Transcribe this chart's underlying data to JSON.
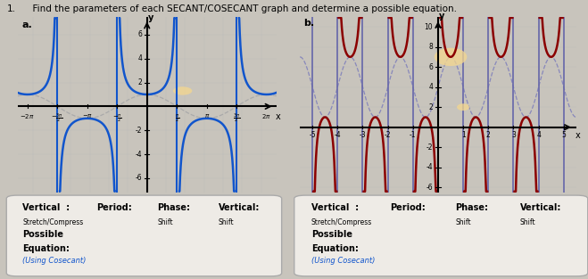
{
  "title_num": "1.",
  "title_text": "  Find the parameters of each SECANT/COSECANT graph and determine a possible equation.",
  "bg_color": "#c8c4bc",
  "graph_bg": "#dedad2",
  "label_a": "a.",
  "label_b": "b.",
  "graph_a": {
    "xlim": [
      -6.8,
      6.8
    ],
    "ylim": [
      -7.2,
      7.5
    ],
    "curve_color": "#1155cc",
    "asymptote_color": "#1155cc",
    "dashed_color": "#aaaaaa",
    "highlight_color": "#f5d78e",
    "amplitude": 1.0,
    "period_factor": 1.0
  },
  "graph_b": {
    "xlim": [
      -5.5,
      5.5
    ],
    "ylim": [
      -6.5,
      11.0
    ],
    "curve_color": "#8b0000",
    "asymptote_color": "#6666aa",
    "dashed_color": "#8888bb",
    "highlight_color": "#f5d78e",
    "amplitude": 3.0,
    "vert_shift": 4.0,
    "period_factor": 1.0
  },
  "box_bg": "#dedad2",
  "box_edge": "#aaaaaa",
  "label1_bold": "Vertical  :",
  "label1_small": "Stretch/Compress",
  "label2": "Period:",
  "label3_bold": "Phase:",
  "label3_small": "Shift",
  "label4_bold": "Vertical:",
  "label4_small": "Shift",
  "possible_eq_bold": "Possible",
  "possible_eq_norm": "Equation:",
  "using_csc": "(Using Cosecant)"
}
